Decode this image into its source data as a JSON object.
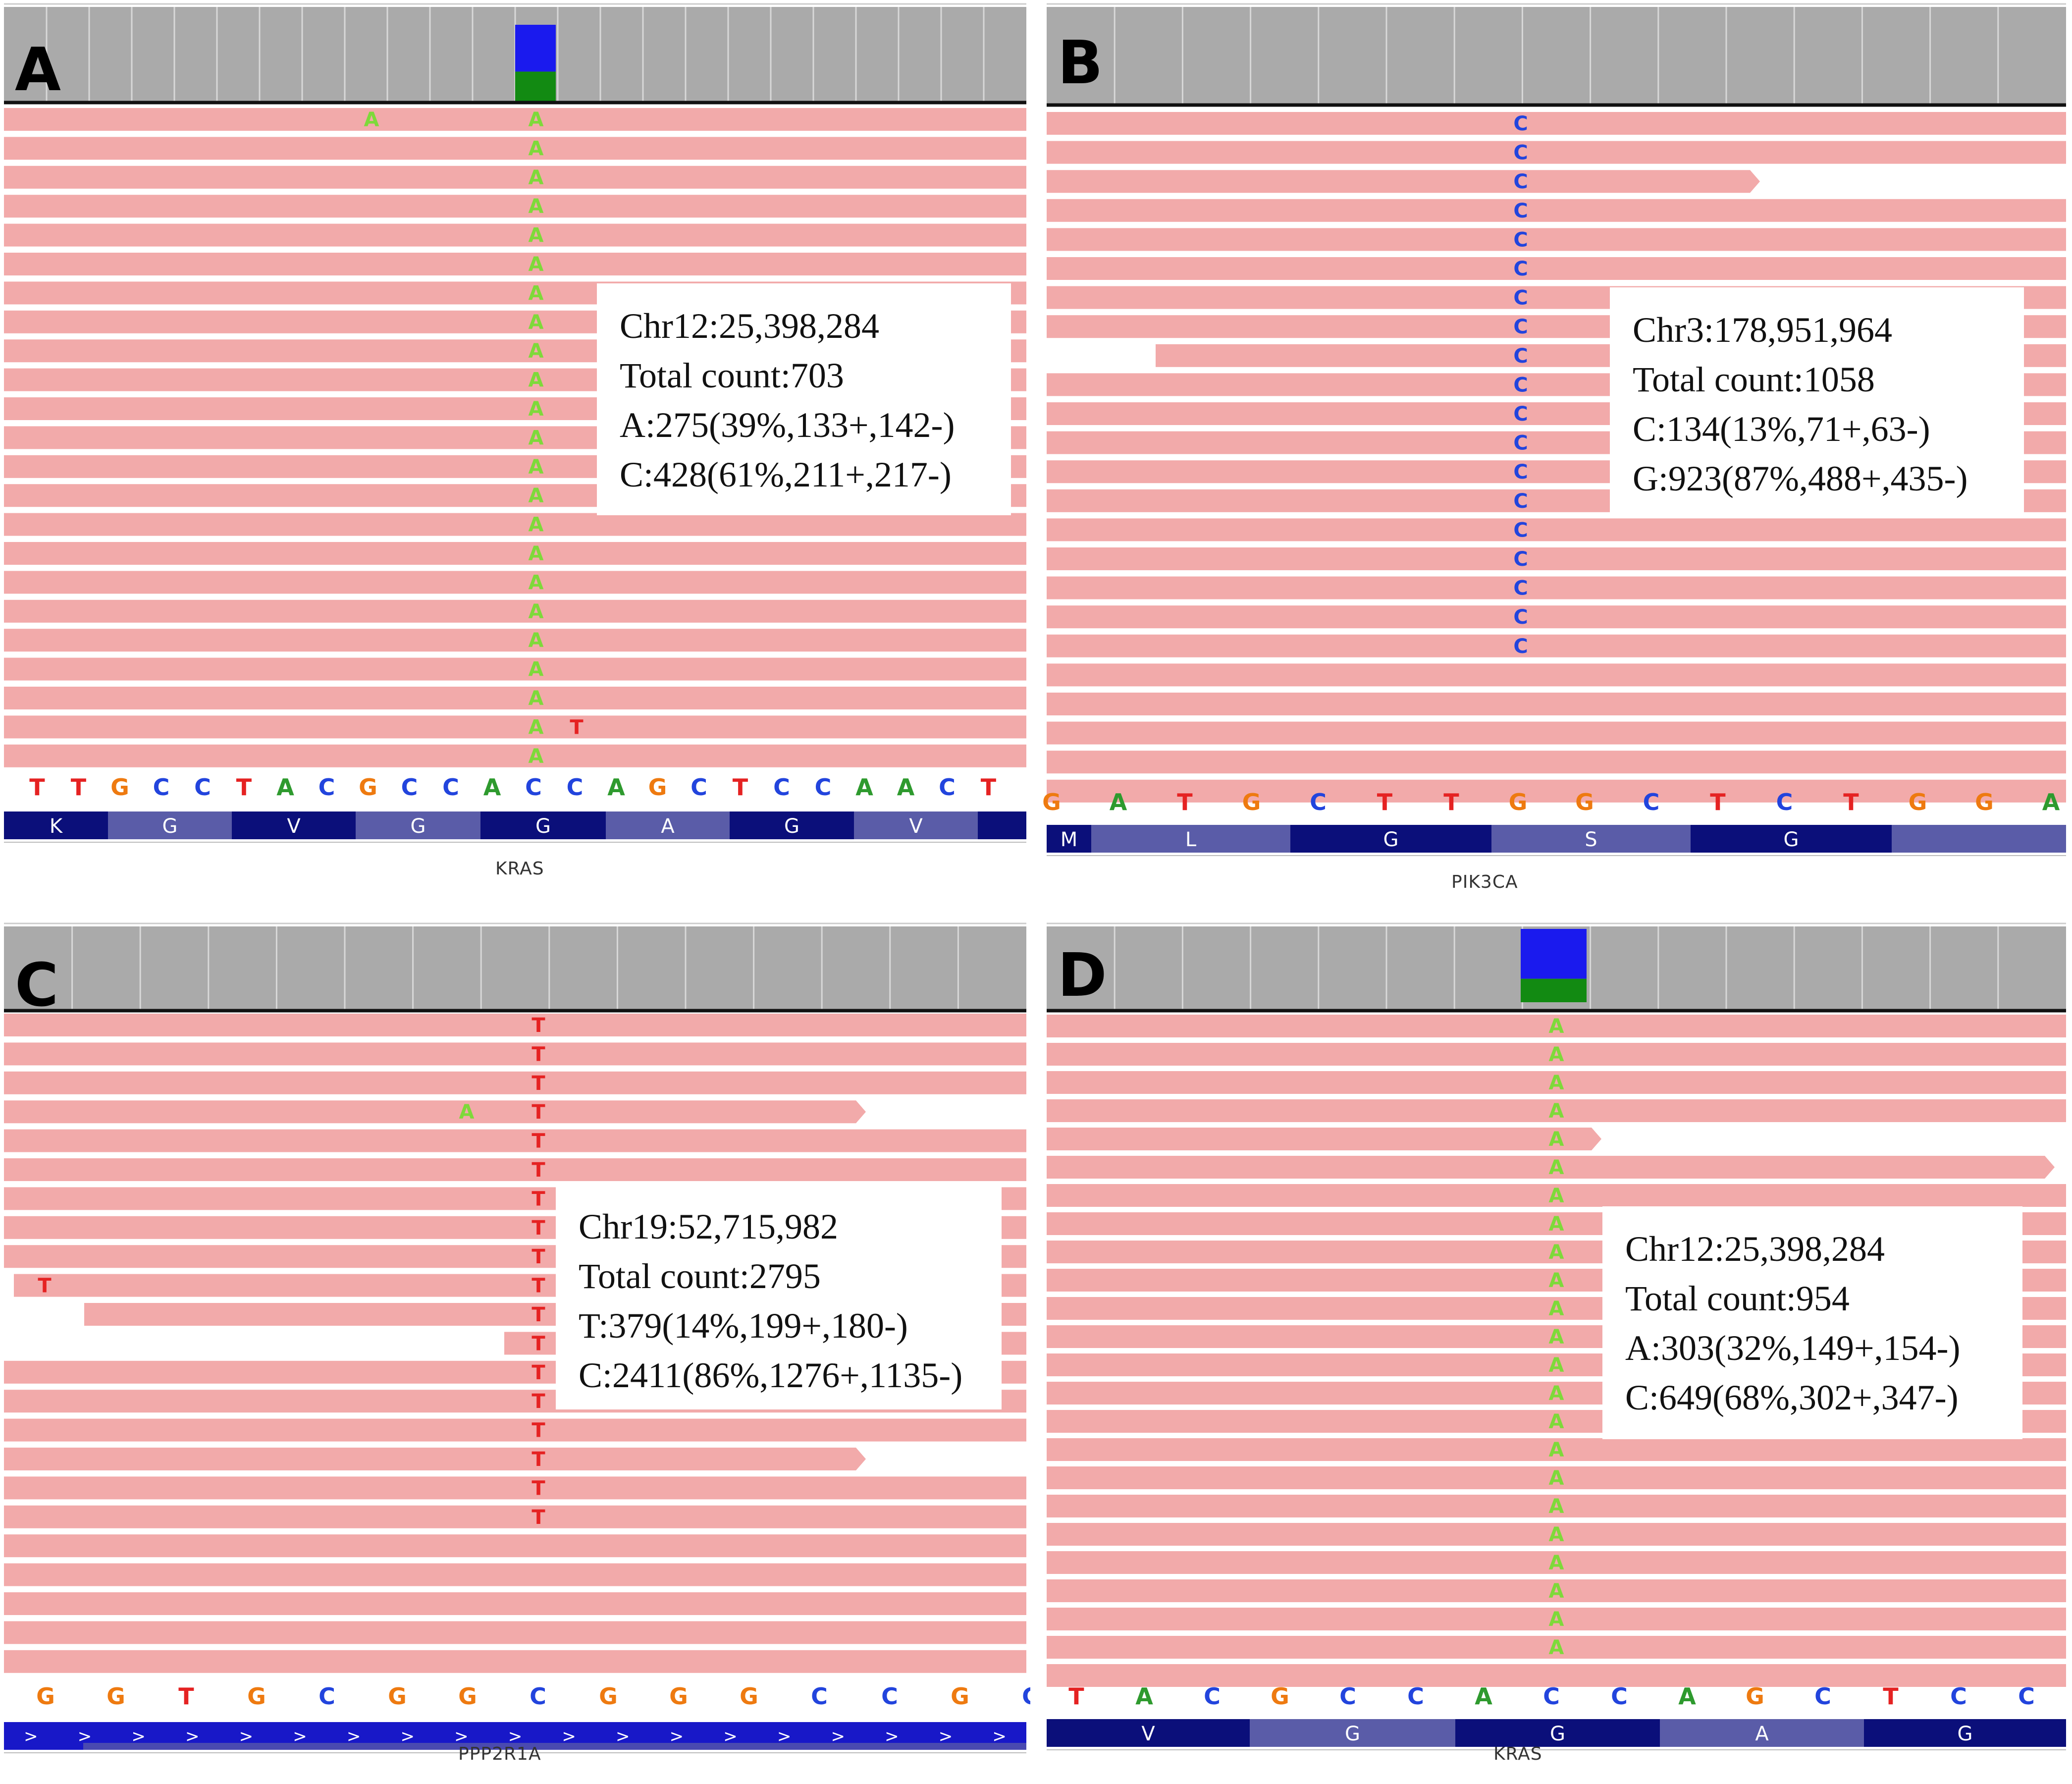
{
  "colors": {
    "read": "#f2aaaa",
    "ruler": "#aaaaaa",
    "base_A": "#2e9a2e",
    "base_A_mismatch": "#7ed93a",
    "base_C": "#2244dd",
    "base_G": "#ee7a10",
    "base_T": "#e52222",
    "aa_dark": "#0b0f7a",
    "aa_light": "#5a5ca8",
    "cov_ref": "#1a1aee",
    "cov_alt": "#128a12"
  },
  "panels": [
    {
      "label": "A",
      "info": [
        "Chr12:25,398,284",
        "Total count:703",
        "A:275(39%,133+,142-)",
        "C:428(61%,211+,217-)"
      ],
      "gene": "KRAS",
      "sequence": [
        "T",
        "T",
        "G",
        "C",
        "C",
        "T",
        "A",
        "C",
        "G",
        "C",
        "C",
        "A",
        "C",
        "C",
        "A",
        "G",
        "C",
        "T",
        "C",
        "C",
        "A",
        "A",
        "C",
        "T"
      ],
      "amino_acids": [
        "K",
        "G",
        "V",
        "G",
        "G",
        "A",
        "G",
        "V"
      ],
      "mismatch_base": "A",
      "coverage_bar": {
        "alt_fraction": 0.39
      }
    },
    {
      "label": "B",
      "info": [
        "Chr3:178,951,964",
        "Total count:1058",
        "C:134(13%,71+,63-)",
        "G:923(87%,488+,435-)"
      ],
      "gene": "PIK3CA",
      "sequence": [
        "G",
        "A",
        "T",
        "G",
        "C",
        "T",
        "T",
        "G",
        "G",
        "C",
        "T",
        "C",
        "T",
        "G",
        "G",
        "A"
      ],
      "amino_acids": [
        "M",
        "L",
        "G",
        "S",
        "G"
      ],
      "mismatch_base": "C"
    },
    {
      "label": "C",
      "info": [
        "Chr19:52,715,982",
        "Total count:2795",
        "T:379(14%,199+,180-)",
        "C:2411(86%,1276+,1135-)"
      ],
      "gene": "PPP2R1A",
      "sequence": [
        "G",
        "G",
        "T",
        "G",
        "C",
        "G",
        "G",
        "C",
        "G",
        "G",
        "G",
        "C",
        "C",
        "G",
        "C"
      ],
      "amino_acids": [
        ">",
        ">",
        ">",
        ">",
        ">",
        ">",
        ">",
        ">",
        ">",
        ">",
        ">",
        ">",
        ">",
        ">",
        ">",
        ">",
        ">",
        ">",
        ">"
      ],
      "mismatch_base": "T"
    },
    {
      "label": "D",
      "info": [
        "Chr12:25,398,284",
        "Total count:954",
        "A:303(32%,149+,154-)",
        "C:649(68%,302+,347-)"
      ],
      "gene": "KRAS",
      "sequence": [
        "T",
        "A",
        "C",
        "G",
        "C",
        "C",
        "A",
        "C",
        "C",
        "A",
        "G",
        "C",
        "T",
        "C",
        "C"
      ],
      "amino_acids": [
        "V",
        "G",
        "G",
        "A",
        "G"
      ],
      "mismatch_base": "A",
      "coverage_bar": {
        "alt_fraction": 0.32
      }
    }
  ]
}
